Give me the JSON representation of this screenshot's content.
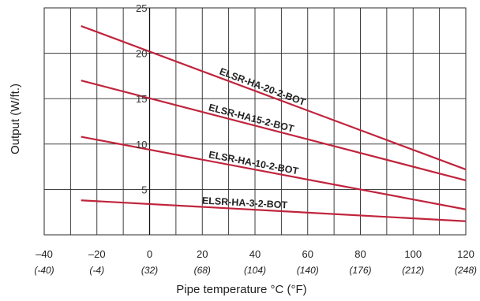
{
  "chart_data": {
    "type": "line",
    "title": "",
    "xlabel": "Pipe temperature °C (°F)",
    "ylabel": "Output (W/ft.)",
    "xlim": [
      -40,
      120
    ],
    "ylim": [
      0,
      25
    ],
    "grid": true,
    "x_ticks": [
      {
        "c": "–40",
        "f": "(-40)"
      },
      {
        "c": "–20",
        "f": "(-4)"
      },
      {
        "c": "0",
        "f": "(32)"
      },
      {
        "c": "20",
        "f": "(68)"
      },
      {
        "c": "40",
        "f": "(104)"
      },
      {
        "c": "60",
        "f": "(140)"
      },
      {
        "c": "80",
        "f": "(176)"
      },
      {
        "c": "100",
        "f": "(212)"
      },
      {
        "c": "120",
        "f": "(248)"
      }
    ],
    "y_ticks": [
      "5",
      "10",
      "15",
      "20",
      "25"
    ],
    "series": [
      {
        "name": "ELSR-HA-20-2-BOT",
        "x": [
          -26,
          120
        ],
        "y": [
          23.0,
          7.2
        ]
      },
      {
        "name": "ELSR-HA15-2-BOT",
        "x": [
          -26,
          120
        ],
        "y": [
          17.0,
          6.0
        ]
      },
      {
        "name": "ELSR-HA-10-2-BOT",
        "x": [
          -26,
          120
        ],
        "y": [
          10.8,
          2.8
        ]
      },
      {
        "name": "ELSR-HA-3-2-BOT",
        "x": [
          -26,
          120
        ],
        "y": [
          3.8,
          1.5
        ]
      }
    ],
    "line_color": "#c0243c"
  }
}
